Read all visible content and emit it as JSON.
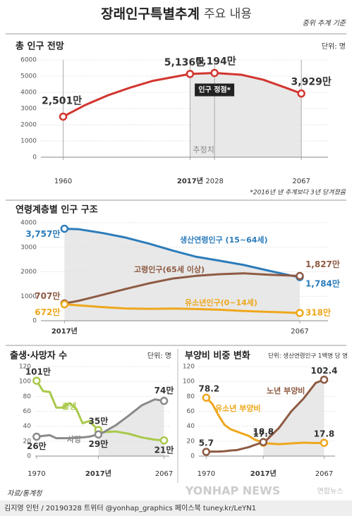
{
  "header": {
    "title": "장래인구특별추계",
    "subtitle": "주요 내용",
    "note": "중위 추계 기준"
  },
  "chart_data": [
    {
      "type": "line",
      "title": "총 인구 전망",
      "unit": "단위: 명",
      "x": [
        1960,
        1970,
        1980,
        1990,
        2000,
        2010,
        2017,
        2028,
        2040,
        2050,
        2060,
        2067
      ],
      "series": [
        {
          "color": "#d2352f",
          "values": [
            2501,
            3224,
            3812,
            4287,
            4701,
            4955,
            5136,
            5194,
            5086,
            4774,
            4284,
            3929
          ],
          "value_labels": [
            "2,501만",
            null,
            null,
            null,
            null,
            null,
            "5,136만",
            "5,194만",
            null,
            null,
            null,
            "3,929만"
          ]
        }
      ],
      "xlim": [
        1950,
        2079
      ],
      "xticks": [
        1960,
        {
          "value": 2017,
          "label": "2017년"
        },
        2028,
        2067
      ],
      "ylim": [
        0,
        6000
      ],
      "yticks": [
        0,
        1000,
        2000,
        3000,
        4000,
        5000,
        6000
      ],
      "annotations": [
        "인구 정점*",
        "추정치"
      ],
      "footnote": "*2016년 낸 추계보다 3년 당겨졌음"
    },
    {
      "type": "line",
      "title": "연령계층별 인구 구조",
      "x": [
        2017,
        2020,
        2025,
        2030,
        2035,
        2040,
        2045,
        2050,
        2055,
        2060,
        2065,
        2067
      ],
      "series": [
        {
          "name": "생산연령인구 (15~64세)",
          "color": "#2b7cbb",
          "values": [
            3757,
            3736,
            3585,
            3395,
            3145,
            2865,
            2611,
            2449,
            2280,
            2061,
            1850,
            1784
          ],
          "value_labels": [
            "3,757만",
            null,
            null,
            null,
            null,
            null,
            null,
            null,
            null,
            null,
            null,
            "1,784만"
          ]
        },
        {
          "name": "고령인구(65세 이상)",
          "color": "#8e5a43",
          "values": [
            707,
            813,
            1051,
            1296,
            1528,
            1722,
            1833,
            1900,
            1937,
            1881,
            1846,
            1827
          ],
          "value_labels": [
            "707만",
            null,
            null,
            null,
            null,
            null,
            null,
            null,
            null,
            null,
            null,
            "1,827만"
          ]
        },
        {
          "name": "유소년인구(0~14세)",
          "color": "#efa71c",
          "values": [
            672,
            630,
            558,
            500,
            487,
            498,
            480,
            450,
            398,
            365,
            330,
            318
          ],
          "value_labels": [
            "672만",
            null,
            null,
            null,
            null,
            null,
            null,
            null,
            null,
            null,
            null,
            "318만"
          ]
        }
      ],
      "xlim": [
        2012,
        2073
      ],
      "xticks": [
        {
          "value": 2017,
          "label": "2017년"
        },
        2067
      ],
      "ylim": [
        0,
        4000
      ],
      "yticks": [
        0,
        1000,
        2000,
        3000,
        4000
      ]
    },
    {
      "type": "line",
      "title": "출생·사망자 수",
      "unit": "단위: 명",
      "x": [
        1970,
        1975,
        1980,
        1985,
        1990,
        1995,
        2000,
        2005,
        2010,
        2017,
        2020,
        2030,
        2040,
        2050,
        2060,
        2067
      ],
      "series": [
        {
          "name": "출생",
          "color": "#a9c94b",
          "values": [
            101,
            87,
            86,
            65,
            65,
            71,
            64,
            44,
            47,
            35,
            32,
            33,
            30,
            25,
            22,
            21
          ],
          "value_labels": [
            "101만",
            null,
            null,
            null,
            null,
            null,
            null,
            null,
            null,
            "35만",
            null,
            null,
            null,
            null,
            null,
            "21만"
          ]
        },
        {
          "name": "사망",
          "color": "#8a8a8a",
          "values": [
            26,
            27,
            28,
            24,
            24,
            24,
            25,
            25,
            26,
            29,
            31,
            41,
            54,
            68,
            76,
            74
          ],
          "value_labels": [
            "26만",
            null,
            null,
            null,
            null,
            null,
            null,
            null,
            null,
            "29만",
            null,
            null,
            null,
            null,
            null,
            "74만"
          ]
        }
      ],
      "xlim": [
        1969,
        2071
      ],
      "xticks": [
        1970,
        {
          "value": 2017,
          "label": "2017년"
        },
        2067
      ],
      "ylim": [
        0,
        120
      ],
      "yticks": [
        0,
        20,
        40,
        60,
        80,
        100,
        120
      ]
    },
    {
      "type": "line",
      "title": "부양비 비중 변화",
      "unit": "단위: 생산연령인구 1백명 당 명",
      "x": [
        1970,
        1975,
        1980,
        1985,
        1990,
        1995,
        2000,
        2005,
        2010,
        2017,
        2020,
        2030,
        2040,
        2050,
        2060,
        2067
      ],
      "series": [
        {
          "name": "유소년 부양비",
          "color": "#efa71c",
          "values": [
            78.2,
            70,
            55,
            42,
            36,
            33,
            30,
            27,
            22,
            17.9,
            17,
            16,
            17,
            18,
            17.5,
            17.8
          ],
          "value_labels": [
            "78.2",
            null,
            null,
            null,
            null,
            null,
            null,
            null,
            null,
            "17.9",
            null,
            null,
            null,
            null,
            null,
            "17.8"
          ]
        },
        {
          "name": "노년 부양비",
          "color": "#8e5a43",
          "values": [
            5.7,
            6,
            6,
            6.5,
            7.4,
            8,
            10,
            12,
            15,
            18.8,
            22,
            38,
            60,
            77,
            98,
            102.4
          ],
          "value_labels": [
            "5.7",
            null,
            null,
            null,
            null,
            null,
            null,
            null,
            null,
            "18.8",
            null,
            null,
            null,
            null,
            null,
            "102.4"
          ]
        }
      ],
      "xlim": [
        1964,
        2076
      ],
      "xticks": [
        1970,
        {
          "value": 2017,
          "label": "2017년"
        },
        2067
      ],
      "ylim": [
        0,
        120
      ],
      "yticks": [
        0,
        20,
        40,
        60,
        80,
        100,
        120
      ]
    }
  ],
  "footer": {
    "source": "자료/통계청",
    "credit": "김지영 인턴 / 20190328 트위터 @yonhap_graphics 페이스북 tuney.kr/LeYN1",
    "watermark": "YONHAP NEWS",
    "logo": "연합뉴스"
  }
}
